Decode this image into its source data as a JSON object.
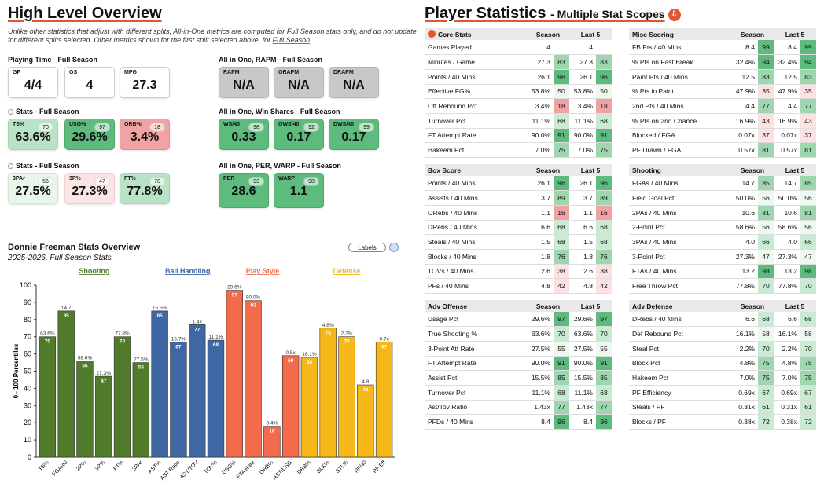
{
  "overview": {
    "title": "High Level Overview",
    "note_a": "Unlike other statistics that adjust with different splits, All-in-One metrics are computed for ",
    "note_b": "Full Season stats",
    "note_c": " only, and do not update for different splits selected. Other metrics shown for the first split selected above, for ",
    "note_d": "Full Season",
    "note_e": "."
  },
  "sections": {
    "playing": "Playing Time - Full Season",
    "rapm": "All in One, RAPM - Full Season",
    "stats1": "Stats - Full Season",
    "winshares": "All in One, Win Shares - Full Season",
    "stats2": "Stats - Full Season",
    "per": "All in One, PER, WARP - Full Season"
  },
  "cards": {
    "gp": {
      "label": "GP",
      "value": "4/4"
    },
    "gs": {
      "label": "GS",
      "value": "4"
    },
    "mpg": {
      "label": "MPG",
      "value": "27.3"
    },
    "rapm": {
      "label": "RAPM",
      "value": "N/A"
    },
    "orapm": {
      "label": "ORAPM",
      "value": "N/A"
    },
    "drapm": {
      "label": "DRAPM",
      "value": "N/A"
    },
    "ts": {
      "label": "TS%",
      "value": "63.6%",
      "pct": "70"
    },
    "usg": {
      "label": "USG%",
      "value": "29.6%",
      "pct": "97"
    },
    "orb": {
      "label": "ORB%",
      "value": "3.4%",
      "pct": "18"
    },
    "ws40": {
      "label": "WS/40",
      "value": "0.33",
      "pct": "98"
    },
    "ows40": {
      "label": "OWS/40",
      "value": "0.17",
      "pct": "92"
    },
    "dws40": {
      "label": "DWS/40",
      "value": "0.17",
      "pct": "99"
    },
    "threepar": {
      "label": "3PAr",
      "value": "27.5%",
      "pct": "55"
    },
    "threep": {
      "label": "3P%",
      "value": "27.3%",
      "pct": "47"
    },
    "ft": {
      "label": "FT%",
      "value": "77.8%",
      "pct": "70"
    },
    "per": {
      "label": "PER",
      "value": "28.6",
      "pct": "93"
    },
    "warp": {
      "label": "WARP",
      "value": "1.1",
      "pct": "98"
    }
  },
  "chart_header": {
    "title": "Donnie Freeman Stats Overview",
    "subtitle": "2025-2026, Full Season Stats",
    "labels_button": "Labels"
  },
  "chart_data": {
    "type": "bar",
    "ylabel": "0 - 100 Percentiles",
    "ylim": [
      0,
      100
    ],
    "yticks": [
      0,
      10,
      20,
      30,
      40,
      50,
      60,
      70,
      80,
      90,
      100
    ],
    "groups": [
      {
        "name": "Shooting",
        "color": "#4f7b2a"
      },
      {
        "name": "Ball Handling",
        "color": "#3f67a3"
      },
      {
        "name": "Play Style",
        "color": "#f26b4a"
      },
      {
        "name": "Defense",
        "color": "#f6b818"
      }
    ],
    "bars": [
      {
        "cat": "TS%",
        "value": 70,
        "label": "63.6%",
        "group": 0
      },
      {
        "cat": "FGA/40",
        "value": 85,
        "label": "14.7",
        "group": 0
      },
      {
        "cat": "2P%",
        "value": 56,
        "label": "58.6%",
        "group": 0
      },
      {
        "cat": "3P%",
        "value": 47,
        "label": "27.3%",
        "group": 0
      },
      {
        "cat": "FT%",
        "value": 70,
        "label": "77.8%",
        "group": 0
      },
      {
        "cat": "3PAr",
        "value": 55,
        "label": "27.5%",
        "group": 0
      },
      {
        "cat": "AST%",
        "value": 85,
        "label": "15.5%",
        "group": 1
      },
      {
        "cat": "AST Ratio",
        "value": 67,
        "label": "13.7%",
        "group": 1
      },
      {
        "cat": "AST/TOV",
        "value": 77,
        "label": "1.4x",
        "group": 1
      },
      {
        "cat": "TOV%",
        "value": 68,
        "label": "11.1%",
        "group": 1
      },
      {
        "cat": "USG%",
        "value": 97,
        "label": "29.6%",
        "group": 2
      },
      {
        "cat": "FTA Rate",
        "value": 91,
        "label": "90.0%",
        "group": 2
      },
      {
        "cat": "ORB%",
        "value": 18,
        "label": "3.4%",
        "group": 2
      },
      {
        "cat": "AST/USG",
        "value": 59,
        "label": "0.5x",
        "group": 2
      },
      {
        "cat": "DRB%",
        "value": 58,
        "label": "16.1%",
        "group": 3
      },
      {
        "cat": "BLK%",
        "value": 75,
        "label": "4.8%",
        "group": 3
      },
      {
        "cat": "STL%",
        "value": 70,
        "label": "2.2%",
        "group": 3
      },
      {
        "cat": "PF/40",
        "value": 42,
        "label": "4.8",
        "group": 3
      },
      {
        "cat": "PF Eff",
        "value": 67,
        "label": "0.7x",
        "group": 3
      }
    ]
  },
  "player_stats": {
    "title": "Player Statistics",
    "subtitle": "- Multiple Stat Scopes",
    "download_icon": "download-icon"
  },
  "tables": [
    {
      "title": "Core Stats",
      "col1": "Season",
      "col2": "Last 5",
      "rows": [
        [
          "Games Played",
          "4",
          "",
          "4",
          ""
        ],
        [
          "Minutes / Game",
          "27.3",
          "83",
          "27.3",
          "83"
        ],
        [
          "Points / 40 Mins",
          "26.1",
          "96",
          "26.1",
          "96"
        ],
        [
          "Effective FG%",
          "53.8%",
          "50",
          "53.8%",
          "50"
        ],
        [
          "Off Rebound Pct",
          "3.4%",
          "18",
          "3.4%",
          "18"
        ],
        [
          "Turnover Pct",
          "11.1%",
          "68",
          "11.1%",
          "68"
        ],
        [
          "FT Attempt Rate",
          "90.0%",
          "91",
          "90.0%",
          "91"
        ],
        [
          "Hakeem Pct",
          "7.0%",
          "75",
          "7.0%",
          "75"
        ]
      ]
    },
    {
      "title": "Misc Scoring",
      "col1": "Season",
      "col2": "Last 5",
      "rows": [
        [
          "FB Pts / 40 Mins",
          "8.4",
          "99",
          "8.4",
          "99"
        ],
        [
          "% Pts on Fast Break",
          "32.4%",
          "94",
          "32.4%",
          "94"
        ],
        [
          "Paint Pts / 40 Mins",
          "12.5",
          "83",
          "12.5",
          "83"
        ],
        [
          "% Pts in Paint",
          "47.9%",
          "35",
          "47.9%",
          "35"
        ],
        [
          "2nd Pts / 40 Mins",
          "4.4",
          "77",
          "4.4",
          "77"
        ],
        [
          "% Pts on 2nd Chance",
          "16.9%",
          "43",
          "16.9%",
          "43"
        ],
        [
          "Blocked / FGA",
          "0.07x",
          "37",
          "0.07x",
          "37"
        ],
        [
          "PF Drawn / FGA",
          "0.57x",
          "81",
          "0.57x",
          "81"
        ]
      ]
    },
    {
      "title": "Box Score",
      "col1": "Season",
      "col2": "Last 5",
      "rows": [
        [
          "Points / 40 Mins",
          "26.1",
          "96",
          "26.1",
          "96"
        ],
        [
          "Assists / 40 Mins",
          "3.7",
          "89",
          "3.7",
          "89"
        ],
        [
          "ORebs / 40 Mins",
          "1.1",
          "16",
          "1.1",
          "16"
        ],
        [
          "DRebs / 40 Mins",
          "6.6",
          "68",
          "6.6",
          "68"
        ],
        [
          "Steals / 40 Mins",
          "1.5",
          "68",
          "1.5",
          "68"
        ],
        [
          "Blocks / 40 Mins",
          "1.8",
          "76",
          "1.8",
          "76"
        ],
        [
          "TOVs / 40 Mins",
          "2.6",
          "38",
          "2.6",
          "38"
        ],
        [
          "PFs / 40 Mins",
          "4.8",
          "42",
          "4.8",
          "42"
        ]
      ]
    },
    {
      "title": "Shooting",
      "col1": "Season",
      "col2": "Last 5",
      "rows": [
        [
          "FGAs / 40 Mins",
          "14.7",
          "85",
          "14.7",
          "85"
        ],
        [
          "Field Goal Pct",
          "50.0%",
          "56",
          "50.0%",
          "56"
        ],
        [
          "2PAs / 40 Mins",
          "10.6",
          "81",
          "10.6",
          "81"
        ],
        [
          "2-Point Pct",
          "58.6%",
          "56",
          "58.6%",
          "56"
        ],
        [
          "3PAs / 40 Mins",
          "4.0",
          "66",
          "4.0",
          "66"
        ],
        [
          "3-Point Pct",
          "27.3%",
          "47",
          "27.3%",
          "47"
        ],
        [
          "FTAs / 40 Mins",
          "13.2",
          "98",
          "13.2",
          "98"
        ],
        [
          "Free Throw Pct",
          "77.8%",
          "70",
          "77.8%",
          "70"
        ]
      ]
    },
    {
      "title": "Adv Offense",
      "col1": "Season",
      "col2": "Last 5",
      "rows": [
        [
          "Usage Pct",
          "29.6%",
          "97",
          "29.6%",
          "97"
        ],
        [
          "True Shooting %",
          "63.6%",
          "70",
          "63.6%",
          "70"
        ],
        [
          "3-Point Att Rate",
          "27.5%",
          "55",
          "27.5%",
          "55"
        ],
        [
          "FT Attempt Rate",
          "90.0%",
          "91",
          "90.0%",
          "91"
        ],
        [
          "Assist Pct",
          "15.5%",
          "85",
          "15.5%",
          "85"
        ],
        [
          "Turnover Pct",
          "11.1%",
          "68",
          "11.1%",
          "68"
        ],
        [
          "Ast/Tov Ratio",
          "1.43x",
          "77",
          "1.43x",
          "77"
        ],
        [
          "PFDs / 40 Mins",
          "8.4",
          "96",
          "8.4",
          "96"
        ]
      ]
    },
    {
      "title": "Adv Defense",
      "col1": "Season",
      "col2": "Last 5",
      "rows": [
        [
          "DRebs / 40 Mins",
          "6.6",
          "68",
          "6.6",
          "68"
        ],
        [
          "Def Rebound Pct",
          "16.1%",
          "58",
          "16.1%",
          "58"
        ],
        [
          "Steal Pct",
          "2.2%",
          "70",
          "2.2%",
          "70"
        ],
        [
          "Block Pct",
          "4.8%",
          "75",
          "4.8%",
          "75"
        ],
        [
          "Hakeem Pct",
          "7.0%",
          "75",
          "7.0%",
          "75"
        ],
        [
          "PF Efficiency",
          "0.69x",
          "67",
          "0.69x",
          "67"
        ],
        [
          "Steals / PF",
          "0.31x",
          "61",
          "0.31x",
          "61"
        ],
        [
          "Blocks / PF",
          "0.38x",
          "72",
          "0.38x",
          "72"
        ]
      ]
    }
  ]
}
